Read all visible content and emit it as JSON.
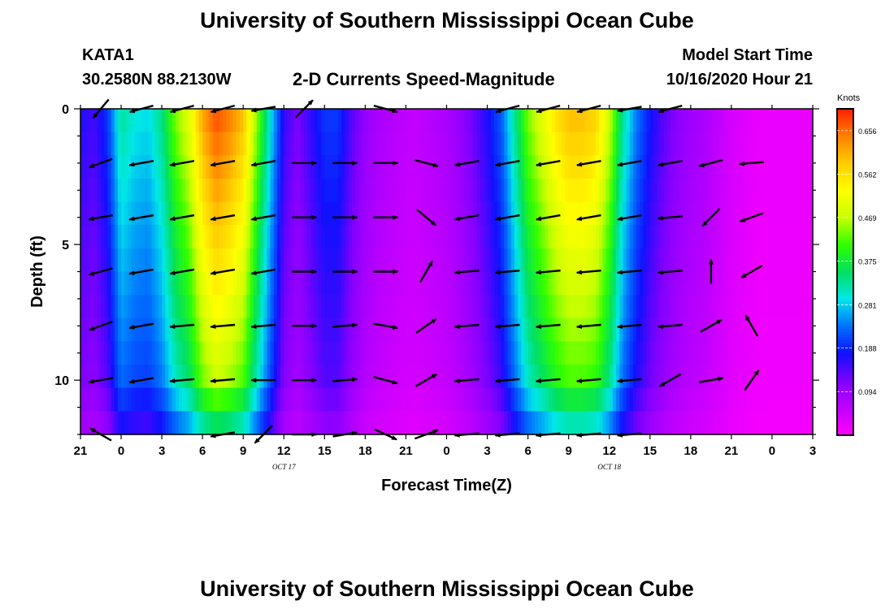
{
  "page": {
    "title_top": "University of Southern Mississippi Ocean Cube",
    "title_bottom": "University of Southern Mississippi Ocean Cube",
    "station_id": "KATA1",
    "station_coords": "30.2580N 88.2130W",
    "plot_title": "2-D Currents Speed-Magnitude",
    "model_start_label": "Model Start Time",
    "model_start_value": "10/16/2020 Hour 21"
  },
  "chart_data": {
    "type": "heatmap",
    "title": "2-D Currents Speed-Magnitude",
    "xlabel": "Forecast Time(Z)",
    "ylabel": "Depth (ft)",
    "x_range_hours": [
      0,
      54
    ],
    "x_tick_hours": [
      0,
      3,
      6,
      9,
      12,
      15,
      18,
      21,
      24,
      27,
      30,
      33,
      36,
      39,
      42,
      45,
      48,
      51,
      54
    ],
    "x_tick_labels": [
      "21",
      "0",
      "3",
      "6",
      "9",
      "12",
      "15",
      "18",
      "21",
      "0",
      "3",
      "6",
      "9",
      "12",
      "15",
      "18",
      "21",
      "0",
      "3"
    ],
    "date_labels": [
      {
        "text": "OCT 17",
        "hour": 15
      },
      {
        "text": "OCT 18",
        "hour": 39
      }
    ],
    "y_range": [
      0,
      12
    ],
    "y_reversed": true,
    "y_tick_values": [
      0,
      5,
      10
    ],
    "y_tick_labels": [
      "0",
      "5",
      "10"
    ],
    "colorbar": {
      "label": "Knots",
      "range": [
        0.0,
        0.703
      ],
      "tick_values": [
        0.094,
        0.188,
        0.281,
        0.375,
        0.469,
        0.562,
        0.656
      ],
      "tick_labels": [
        "0.094",
        "0.188",
        "0.281",
        "0.375",
        "0.469",
        "0.562",
        "0.656"
      ],
      "colors": [
        "#ff00ff",
        "#c000ff",
        "#8000ff",
        "#1010ff",
        "#0070ff",
        "#00e8e8",
        "#00e060",
        "#30ff00",
        "#c8ff00",
        "#ffff00",
        "#ffcc00",
        "#ff8000",
        "#ff2000"
      ]
    },
    "speed_profile": {
      "hours": [
        0,
        1,
        2,
        3,
        4,
        5,
        6,
        7,
        8,
        9,
        10,
        11,
        12,
        13,
        14,
        15,
        16,
        17,
        18,
        19,
        20,
        21,
        22,
        23,
        24,
        25,
        26,
        27,
        28,
        29,
        30,
        31,
        32,
        33,
        34,
        35,
        36,
        37,
        38,
        39,
        40,
        41,
        42,
        43,
        44,
        45,
        46,
        47,
        48,
        49,
        50,
        51,
        52,
        53,
        54
      ],
      "surface_knots": [
        0.17,
        0.15,
        0.2,
        0.33,
        0.3,
        0.29,
        0.34,
        0.44,
        0.5,
        0.62,
        0.68,
        0.65,
        0.6,
        0.45,
        0.3,
        0.16,
        0.12,
        0.16,
        0.2,
        0.2,
        0.14,
        0.1,
        0.08,
        0.07,
        0.06,
        0.06,
        0.07,
        0.08,
        0.1,
        0.13,
        0.17,
        0.22,
        0.33,
        0.44,
        0.5,
        0.56,
        0.6,
        0.6,
        0.58,
        0.48,
        0.33,
        0.24,
        0.18,
        0.14,
        0.11,
        0.09,
        0.08,
        0.06,
        0.04,
        0.03,
        0.02,
        0.02,
        0.02,
        0.02,
        0.02
      ]
    },
    "vectors": [
      {
        "t": 1.5,
        "d": 0,
        "angle_deg": 230
      },
      {
        "t": 1.5,
        "d": 2,
        "angle_deg": 200
      },
      {
        "t": 1.5,
        "d": 4,
        "angle_deg": 190
      },
      {
        "t": 1.5,
        "d": 6,
        "angle_deg": 195
      },
      {
        "t": 1.5,
        "d": 8,
        "angle_deg": 200
      },
      {
        "t": 1.5,
        "d": 10,
        "angle_deg": 190
      },
      {
        "t": 1.5,
        "d": 12,
        "angle_deg": 150
      },
      {
        "t": 4.5,
        "d": 0,
        "angle_deg": 195
      },
      {
        "t": 4.5,
        "d": 2,
        "angle_deg": 190
      },
      {
        "t": 4.5,
        "d": 4,
        "angle_deg": 190
      },
      {
        "t": 4.5,
        "d": 6,
        "angle_deg": 190
      },
      {
        "t": 4.5,
        "d": 8,
        "angle_deg": 190
      },
      {
        "t": 4.5,
        "d": 10,
        "angle_deg": 190
      },
      {
        "t": 7.5,
        "d": 0,
        "angle_deg": 195
      },
      {
        "t": 7.5,
        "d": 2,
        "angle_deg": 190
      },
      {
        "t": 7.5,
        "d": 4,
        "angle_deg": 190
      },
      {
        "t": 7.5,
        "d": 6,
        "angle_deg": 190
      },
      {
        "t": 7.5,
        "d": 8,
        "angle_deg": 185
      },
      {
        "t": 7.5,
        "d": 10,
        "angle_deg": 185
      },
      {
        "t": 10.5,
        "d": 0,
        "angle_deg": 195
      },
      {
        "t": 10.5,
        "d": 2,
        "angle_deg": 190
      },
      {
        "t": 10.5,
        "d": 4,
        "angle_deg": 190
      },
      {
        "t": 10.5,
        "d": 6,
        "angle_deg": 190
      },
      {
        "t": 10.5,
        "d": 8,
        "angle_deg": 185
      },
      {
        "t": 10.5,
        "d": 10,
        "angle_deg": 185
      },
      {
        "t": 10.5,
        "d": 12,
        "angle_deg": 190
      },
      {
        "t": 13.5,
        "d": 0,
        "angle_deg": 190
      },
      {
        "t": 13.5,
        "d": 2,
        "angle_deg": 190
      },
      {
        "t": 13.5,
        "d": 4,
        "angle_deg": 190
      },
      {
        "t": 13.5,
        "d": 6,
        "angle_deg": 190
      },
      {
        "t": 13.5,
        "d": 8,
        "angle_deg": 185
      },
      {
        "t": 13.5,
        "d": 10,
        "angle_deg": 180
      },
      {
        "t": 13.5,
        "d": 12,
        "angle_deg": 225
      },
      {
        "t": 16.5,
        "d": 0,
        "angle_deg": 45
      },
      {
        "t": 16.5,
        "d": 2,
        "angle_deg": 0
      },
      {
        "t": 16.5,
        "d": 4,
        "angle_deg": 0
      },
      {
        "t": 16.5,
        "d": 6,
        "angle_deg": 0
      },
      {
        "t": 16.5,
        "d": 8,
        "angle_deg": 0
      },
      {
        "t": 16.5,
        "d": 10,
        "angle_deg": 0
      },
      {
        "t": 16.5,
        "d": 12,
        "angle_deg": 0
      },
      {
        "t": 19.5,
        "d": 2,
        "angle_deg": 0
      },
      {
        "t": 19.5,
        "d": 4,
        "angle_deg": 0
      },
      {
        "t": 19.5,
        "d": 6,
        "angle_deg": 0
      },
      {
        "t": 19.5,
        "d": 8,
        "angle_deg": 5
      },
      {
        "t": 19.5,
        "d": 10,
        "angle_deg": 5
      },
      {
        "t": 19.5,
        "d": 12,
        "angle_deg": 10
      },
      {
        "t": 22.5,
        "d": 0,
        "angle_deg": -15
      },
      {
        "t": 22.5,
        "d": 2,
        "angle_deg": 0
      },
      {
        "t": 22.5,
        "d": 4,
        "angle_deg": 0
      },
      {
        "t": 22.5,
        "d": 6,
        "angle_deg": 0
      },
      {
        "t": 22.5,
        "d": 8,
        "angle_deg": -10
      },
      {
        "t": 22.5,
        "d": 10,
        "angle_deg": -15
      },
      {
        "t": 22.5,
        "d": 12,
        "angle_deg": -25
      },
      {
        "t": 25.5,
        "d": 2,
        "angle_deg": -15
      },
      {
        "t": 25.5,
        "d": 4,
        "angle_deg": -40
      },
      {
        "t": 25.5,
        "d": 6,
        "angle_deg": 60
      },
      {
        "t": 25.5,
        "d": 8,
        "angle_deg": 35
      },
      {
        "t": 25.5,
        "d": 10,
        "angle_deg": 30
      },
      {
        "t": 25.5,
        "d": 12,
        "angle_deg": 20
      },
      {
        "t": 28.5,
        "d": 2,
        "angle_deg": 190
      },
      {
        "t": 28.5,
        "d": 4,
        "angle_deg": 190
      },
      {
        "t": 28.5,
        "d": 6,
        "angle_deg": 185
      },
      {
        "t": 28.5,
        "d": 8,
        "angle_deg": 185
      },
      {
        "t": 28.5,
        "d": 10,
        "angle_deg": 185
      },
      {
        "t": 28.5,
        "d": 12,
        "angle_deg": 185
      },
      {
        "t": 31.5,
        "d": 0,
        "angle_deg": 195
      },
      {
        "t": 31.5,
        "d": 2,
        "angle_deg": 190
      },
      {
        "t": 31.5,
        "d": 4,
        "angle_deg": 190
      },
      {
        "t": 31.5,
        "d": 6,
        "angle_deg": 185
      },
      {
        "t": 31.5,
        "d": 8,
        "angle_deg": 185
      },
      {
        "t": 31.5,
        "d": 10,
        "angle_deg": 185
      },
      {
        "t": 31.5,
        "d": 12,
        "angle_deg": 185
      },
      {
        "t": 34.5,
        "d": 0,
        "angle_deg": 195
      },
      {
        "t": 34.5,
        "d": 2,
        "angle_deg": 190
      },
      {
        "t": 34.5,
        "d": 4,
        "angle_deg": 190
      },
      {
        "t": 34.5,
        "d": 6,
        "angle_deg": 185
      },
      {
        "t": 34.5,
        "d": 8,
        "angle_deg": 185
      },
      {
        "t": 34.5,
        "d": 10,
        "angle_deg": 185
      },
      {
        "t": 34.5,
        "d": 12,
        "angle_deg": 185
      },
      {
        "t": 37.5,
        "d": 0,
        "angle_deg": 195
      },
      {
        "t": 37.5,
        "d": 2,
        "angle_deg": 190
      },
      {
        "t": 37.5,
        "d": 4,
        "angle_deg": 190
      },
      {
        "t": 37.5,
        "d": 6,
        "angle_deg": 185
      },
      {
        "t": 37.5,
        "d": 8,
        "angle_deg": 185
      },
      {
        "t": 37.5,
        "d": 10,
        "angle_deg": 185
      },
      {
        "t": 37.5,
        "d": 12,
        "angle_deg": 185
      },
      {
        "t": 40.5,
        "d": 0,
        "angle_deg": 190
      },
      {
        "t": 40.5,
        "d": 2,
        "angle_deg": 190
      },
      {
        "t": 40.5,
        "d": 4,
        "angle_deg": 190
      },
      {
        "t": 40.5,
        "d": 6,
        "angle_deg": 185
      },
      {
        "t": 40.5,
        "d": 8,
        "angle_deg": 185
      },
      {
        "t": 40.5,
        "d": 10,
        "angle_deg": 185
      },
      {
        "t": 40.5,
        "d": 12,
        "angle_deg": 185
      },
      {
        "t": 43.5,
        "d": 0,
        "angle_deg": 195
      },
      {
        "t": 43.5,
        "d": 2,
        "angle_deg": 190
      },
      {
        "t": 43.5,
        "d": 4,
        "angle_deg": 185
      },
      {
        "t": 43.5,
        "d": 6,
        "angle_deg": 185
      },
      {
        "t": 43.5,
        "d": 8,
        "angle_deg": 185
      },
      {
        "t": 43.5,
        "d": 10,
        "angle_deg": 210
      },
      {
        "t": 46.5,
        "d": 2,
        "angle_deg": 195
      },
      {
        "t": 46.5,
        "d": 4,
        "angle_deg": 225
      },
      {
        "t": 46.5,
        "d": 6,
        "angle_deg": 90
      },
      {
        "t": 46.5,
        "d": 8,
        "angle_deg": 30
      },
      {
        "t": 46.5,
        "d": 10,
        "angle_deg": 10
      },
      {
        "t": 49.5,
        "d": 2,
        "angle_deg": 185
      },
      {
        "t": 49.5,
        "d": 4,
        "angle_deg": 200
      },
      {
        "t": 49.5,
        "d": 6,
        "angle_deg": 210
      },
      {
        "t": 49.5,
        "d": 8,
        "angle_deg": 120
      },
      {
        "t": 49.5,
        "d": 10,
        "angle_deg": 55
      }
    ]
  }
}
